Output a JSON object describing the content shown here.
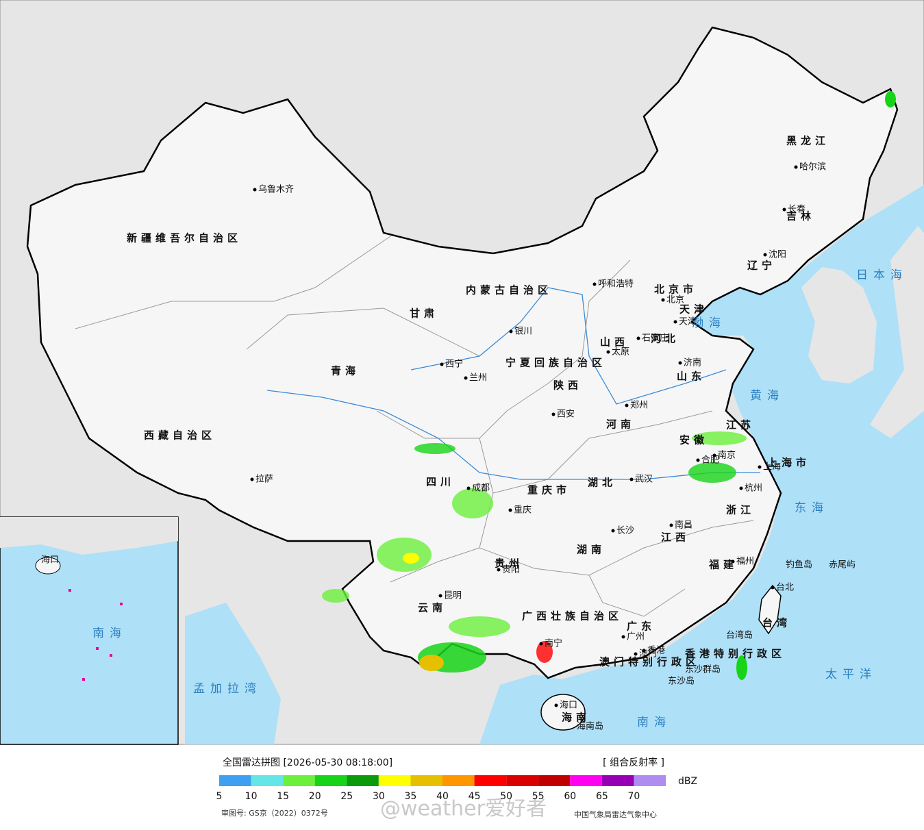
{
  "map": {
    "provinces": [
      "新疆维吾尔自治区",
      "西藏自治区",
      "青海",
      "甘肃",
      "内蒙古自治区",
      "宁夏回族自治区",
      "陕西",
      "山西",
      "河北",
      "山东",
      "河南",
      "四川",
      "重庆市",
      "湖北",
      "安徽",
      "江苏",
      "上海市",
      "浙江",
      "湖南",
      "江西",
      "福建",
      "贵州",
      "云南",
      "广西壮族自治区",
      "广东",
      "香港特别行政区",
      "澳门特别行政区",
      "海南",
      "台湾",
      "黑龙江",
      "吉林",
      "辽宁",
      "北京市",
      "天津"
    ],
    "cities": [
      "乌鲁木齐",
      "拉萨",
      "西宁",
      "兰州",
      "银川",
      "呼和浩特",
      "北京",
      "天津",
      "石家庄",
      "太原",
      "济南",
      "郑州",
      "西安",
      "成都",
      "重庆",
      "武汉",
      "合肥",
      "南京",
      "上海",
      "杭州",
      "长沙",
      "南昌",
      "福州",
      "贵阳",
      "昆明",
      "南宁",
      "广州",
      "香港",
      "澳门",
      "海口",
      "哈尔滨",
      "长春",
      "沈阳",
      "台北"
    ],
    "islands": [
      "钓鱼岛",
      "赤尾屿",
      "台湾岛",
      "东沙群岛",
      "东沙岛",
      "海南岛"
    ],
    "seas": [
      "日本海",
      "渤海",
      "黄海",
      "东海",
      "太平洋",
      "南海",
      "孟加拉湾"
    ],
    "inset": [
      "南海",
      "海口"
    ]
  },
  "legend": {
    "title": "全国雷达拼图 [2026-05-30 08:18:00]",
    "product": "[ 组合反射率 ]",
    "unit": "dBZ",
    "colors": [
      "#3f9ff0",
      "#64e6e6",
      "#6cf03c",
      "#18d418",
      "#0a9a0a",
      "#ffff00",
      "#e6c000",
      "#ff9600",
      "#ff0000",
      "#d80000",
      "#c00000",
      "#ff00f0",
      "#9600b4",
      "#ae8cf0"
    ],
    "ticks": [
      5,
      10,
      15,
      20,
      25,
      30,
      35,
      40,
      45,
      50,
      55,
      60,
      65,
      70
    ]
  },
  "footer": {
    "approval": "审图号: GS京（2022）0372号",
    "source": "中国气象局雷达气象中心",
    "watermark": "@weather爱好者"
  }
}
